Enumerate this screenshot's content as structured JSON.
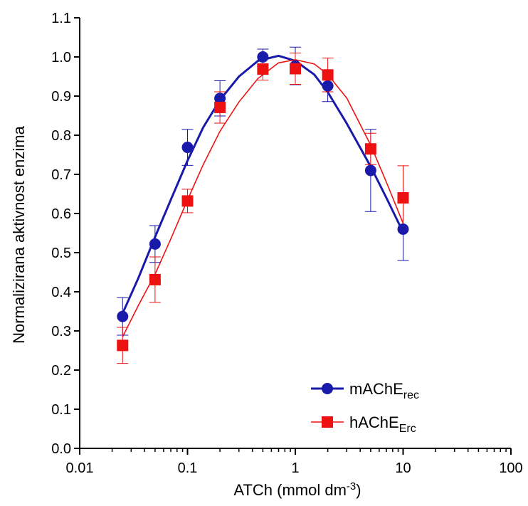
{
  "chart_data": {
    "type": "scatter",
    "title": "",
    "xlabel": "ATCh  (mmol dm",
    "xlabel_superscript": "-3",
    "xlabel_close": ")",
    "ylabel": "Normalizirana aktivnost enzima",
    "xscale": "log",
    "xlim": [
      0.01,
      100
    ],
    "ylim": [
      0.0,
      1.1
    ],
    "x_ticks": [
      0.01,
      0.1,
      1,
      10,
      100
    ],
    "x_tick_labels": [
      "0.01",
      "0.1",
      "1",
      "10",
      "100"
    ],
    "y_ticks": [
      0.0,
      0.1,
      0.2,
      0.3,
      0.4,
      0.5,
      0.6,
      0.7,
      0.8,
      0.9,
      1.0,
      1.1
    ],
    "y_tick_labels": [
      "0.0",
      "0.1",
      "0.2",
      "0.3",
      "0.4",
      "0.5",
      "0.6",
      "0.7",
      "0.8",
      "0.9",
      "1.0",
      "1.1"
    ],
    "grid": false,
    "legend_position": "bottom-right",
    "series": [
      {
        "name": "mAChE",
        "name_subscript": "rec",
        "color": "#1a1aaa",
        "marker": "circle",
        "x": [
          0.025,
          0.05,
          0.1,
          0.2,
          0.5,
          1,
          2,
          5,
          10
        ],
        "y": [
          0.337,
          0.522,
          0.769,
          0.894,
          1.0,
          0.977,
          0.926,
          0.71,
          0.56
        ],
        "error": [
          0.048,
          0.047,
          0.046,
          0.045,
          0.02,
          0.048,
          0.04,
          0.105,
          0.08
        ],
        "fit": {
          "x": [
            0.025,
            0.035,
            0.05,
            0.07,
            0.1,
            0.14,
            0.2,
            0.3,
            0.45,
            0.7,
            1.0,
            1.5,
            2,
            3,
            5,
            7,
            10
          ],
          "y": [
            0.345,
            0.435,
            0.54,
            0.635,
            0.735,
            0.82,
            0.89,
            0.95,
            0.99,
            1.003,
            0.99,
            0.955,
            0.91,
            0.83,
            0.72,
            0.64,
            0.552
          ]
        }
      },
      {
        "name": "hAChE",
        "name_subscript": "Erc",
        "color": "#ee1111",
        "marker": "square",
        "x": [
          0.025,
          0.05,
          0.1,
          0.2,
          0.5,
          1,
          2,
          5,
          10
        ],
        "y": [
          0.263,
          0.431,
          0.632,
          0.871,
          0.969,
          0.97,
          0.954,
          0.765,
          0.64
        ],
        "error": [
          0.046,
          0.058,
          0.03,
          0.04,
          0.028,
          0.04,
          0.043,
          0.04,
          0.082
        ],
        "fit": {
          "x": [
            0.025,
            0.035,
            0.05,
            0.07,
            0.1,
            0.14,
            0.2,
            0.3,
            0.45,
            0.7,
            1.0,
            1.5,
            2,
            3,
            5,
            7,
            10
          ],
          "y": [
            0.285,
            0.365,
            0.445,
            0.535,
            0.635,
            0.725,
            0.81,
            0.885,
            0.945,
            0.985,
            0.993,
            0.982,
            0.955,
            0.895,
            0.775,
            0.68,
            0.575
          ]
        }
      }
    ]
  }
}
